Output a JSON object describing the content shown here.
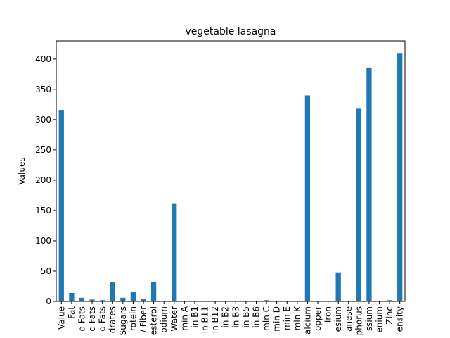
{
  "chart_data": {
    "type": "bar",
    "title": "vegetable lasagna",
    "xlabel": "",
    "ylabel": "Values",
    "ylim": [
      0,
      430
    ],
    "yticks": [
      0,
      50,
      100,
      150,
      200,
      250,
      300,
      350,
      400
    ],
    "categories": [
      "Value",
      "Fat",
      "d Fats",
      "d Fats",
      "d Fats",
      "drates",
      "Sugars",
      "rotein",
      "/ Fiber",
      "esterol",
      "odium",
      "Water",
      "min A",
      "in B1",
      "in B11",
      "in B12",
      "in B2",
      "in B3",
      "in B5",
      "in B6",
      "min C",
      "min D",
      "min E",
      "min K",
      "alcium",
      "opper",
      "Iron",
      "esium",
      "anese",
      "phorus",
      "ssium",
      "enium",
      "Zinc",
      "ensity"
    ],
    "values": [
      316,
      14,
      6,
      3,
      2,
      32,
      6,
      15,
      4,
      32,
      1,
      162,
      0,
      0,
      0,
      0,
      0,
      1,
      0,
      0,
      2,
      0,
      1,
      0,
      340,
      0,
      1,
      48,
      0,
      318,
      386,
      0,
      2,
      410
    ],
    "bar_color": "#1f77b4",
    "grid": false,
    "legend": "none"
  }
}
